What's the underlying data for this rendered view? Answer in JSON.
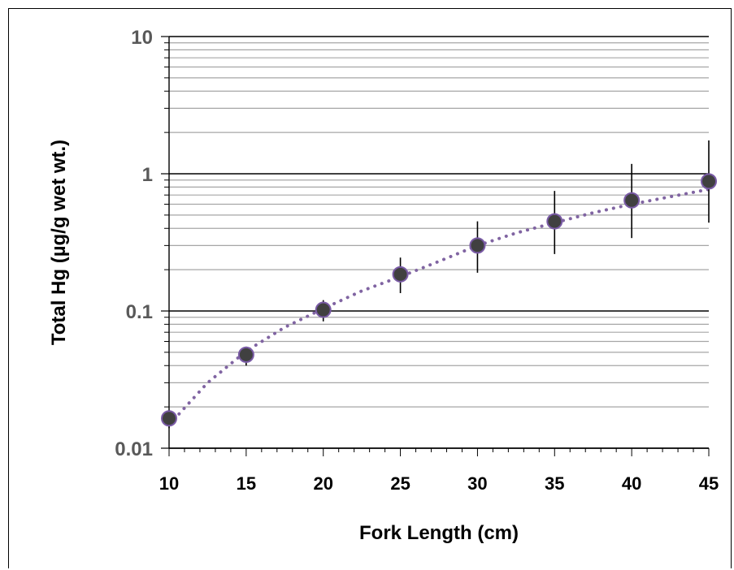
{
  "chart_data": {
    "type": "scatter",
    "xlabel": "Fork Length (cm)",
    "ylabel": "Total Hg (µg/g wet wt.)",
    "yscale": "log",
    "xlim": [
      10,
      45
    ],
    "ylim": [
      0.01,
      10
    ],
    "x_ticks": [
      "10",
      "15",
      "20",
      "25",
      "30",
      "35",
      "40",
      "45"
    ],
    "y_ticks": [
      "0.01",
      "0.1",
      "1",
      "10"
    ],
    "grid": "horizontal major and minor",
    "series": [
      {
        "x": [
          10,
          15,
          20,
          25,
          30,
          35,
          40,
          45
        ],
        "y": [
          0.0165,
          0.048,
          0.102,
          0.185,
          0.3,
          0.45,
          0.64,
          0.88
        ],
        "error_low": [
          0.014,
          0.04,
          0.084,
          0.135,
          0.19,
          0.26,
          0.34,
          0.44
        ],
        "error_high": [
          0.019,
          0.055,
          0.12,
          0.245,
          0.45,
          0.75,
          1.18,
          1.75
        ],
        "marker_color": "#404040",
        "marker_edge_color": "#7a5ba6"
      }
    ],
    "trendline": {
      "style": "dotted",
      "color": "#8064a2",
      "x": [
        10,
        12.5,
        15,
        17.5,
        20,
        22.5,
        25,
        27.5,
        30,
        32.5,
        35,
        37.5,
        40,
        42.5,
        45
      ],
      "y": [
        0.0148,
        0.03,
        0.051,
        0.076,
        0.104,
        0.14,
        0.178,
        0.23,
        0.3,
        0.37,
        0.44,
        0.52,
        0.6,
        0.68,
        0.77
      ]
    }
  }
}
